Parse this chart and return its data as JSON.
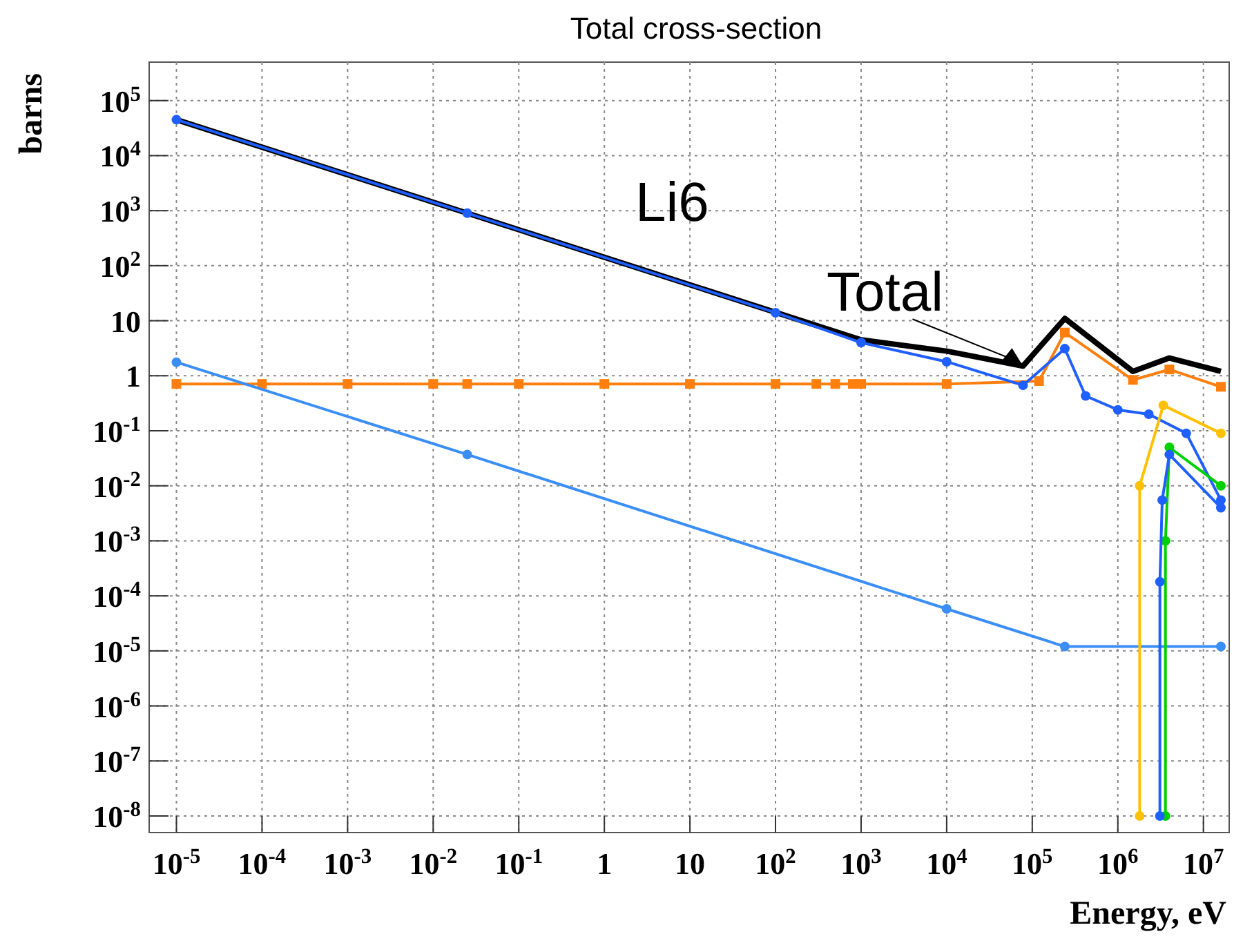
{
  "chart_data": {
    "type": "line",
    "title": "Total cross-section",
    "xlabel": "Energy, eV",
    "ylabel": "barns",
    "log": "xy",
    "grid": true,
    "line_style": "solid",
    "xlim": [
      4.8e-06,
      20000000.0
    ],
    "ylim": [
      5e-09,
      500000.0
    ],
    "xticks": [
      {
        "value": 1e-05,
        "label": "10$^{-5}$"
      },
      {
        "value": 0.0001,
        "label": "10$^{-4}$"
      },
      {
        "value": 0.001,
        "label": "10$^{-3}$"
      },
      {
        "value": 0.01,
        "label": "10$^{-2}$"
      },
      {
        "value": 0.1,
        "label": "10$^{-1}$"
      },
      1,
      10,
      {
        "value": 100,
        "label": "10$^{2}$"
      },
      {
        "value": 1000,
        "label": "10$^{3}$"
      },
      {
        "value": 10000,
        "label": "10$^{4}$"
      },
      {
        "value": 100000,
        "label": "10$^{5}$"
      },
      {
        "value": 1000000,
        "label": "10$^{6}$"
      },
      {
        "value": 10000000,
        "label": "10$^{7}$"
      }
    ],
    "yticks": [
      {
        "value": 1e-08,
        "label": "10$^{-8}$"
      },
      {
        "value": 1e-07,
        "label": "10$^{-7}$"
      },
      {
        "value": 1e-06,
        "label": "10$^{-6}$"
      },
      {
        "value": 1e-05,
        "label": "10$^{-5}$"
      },
      {
        "value": 0.0001,
        "label": "10$^{-4}$"
      },
      {
        "value": 0.001,
        "label": "10$^{-3}$"
      },
      {
        "value": 0.01,
        "label": "10$^{-2}$"
      },
      {
        "value": 0.1,
        "label": "10$^{-1}$"
      },
      1,
      10,
      {
        "value": 100,
        "label": "10$^{2}$"
      },
      {
        "value": 1000,
        "label": "10$^{3}$"
      },
      {
        "value": 10000,
        "label": "10$^{4}$"
      },
      {
        "value": 100000,
        "label": "10$^{5}$"
      }
    ],
    "annotations": [
      "Li6",
      {
        "text": "Total",
        "x": 78000,
        "y": 1.5
      }
    ],
    "series": [
      {
        "color": "#000000",
        "marker": "none",
        "x": [
          1e-05,
          1000,
          10000,
          78000,
          240000,
          1500000,
          4000000,
          16000000
        ],
        "values": [
          45000,
          4.5,
          2.8,
          1.5,
          11,
          1.2,
          2.1,
          1.2
        ]
      },
      {
        "color": "#ff7f0e",
        "marker": "square",
        "x": [
          1e-05,
          0.0001,
          0.001,
          0.01,
          0.025,
          0.1,
          1,
          10,
          100,
          300,
          500,
          800,
          1000,
          10000,
          120000,
          240000,
          1500000,
          4000000,
          16000000
        ],
        "values": [
          0.71,
          0.71,
          0.71,
          0.71,
          0.71,
          0.71,
          0.71,
          0.71,
          0.71,
          0.71,
          0.71,
          0.71,
          0.71,
          0.71,
          0.8,
          6.1,
          0.84,
          1.3,
          0.63
        ]
      },
      {
        "color": "#1f5fff",
        "marker": "circle",
        "x": [
          1e-05,
          0.025,
          100,
          1000,
          10000,
          78000,
          240000,
          420000,
          1000000,
          2300000,
          6300000,
          16000000
        ],
        "values": [
          45000,
          900,
          14,
          4,
          1.8,
          0.67,
          3.1,
          0.43,
          0.24,
          0.2,
          0.09,
          0.0055
        ]
      },
      {
        "color": "#3a8ef6",
        "marker": "circle",
        "x": [
          1e-05,
          0.025,
          10000,
          240000,
          16000000
        ],
        "values": [
          1.76,
          0.037,
          5.8e-05,
          1.2e-05,
          1.2e-05
        ]
      },
      {
        "color": "#ffc000",
        "marker": "circle",
        "x": [
          1800000,
          1800000,
          3400000,
          16000000
        ],
        "values": [
          1e-08,
          0.01,
          0.29,
          0.09
        ]
      },
      {
        "color": "#00d000",
        "marker": "circle",
        "x": [
          3600000,
          3600000,
          4000000,
          16000000
        ],
        "values": [
          1e-08,
          0.001,
          0.05,
          0.01
        ]
      },
      {
        "color": "#1f5fff",
        "marker": "circle",
        "x": [
          3100000,
          3100000,
          3300000,
          4000000,
          16000000
        ],
        "values": [
          1e-08,
          0.00018,
          0.0055,
          0.037,
          0.004
        ]
      }
    ]
  }
}
